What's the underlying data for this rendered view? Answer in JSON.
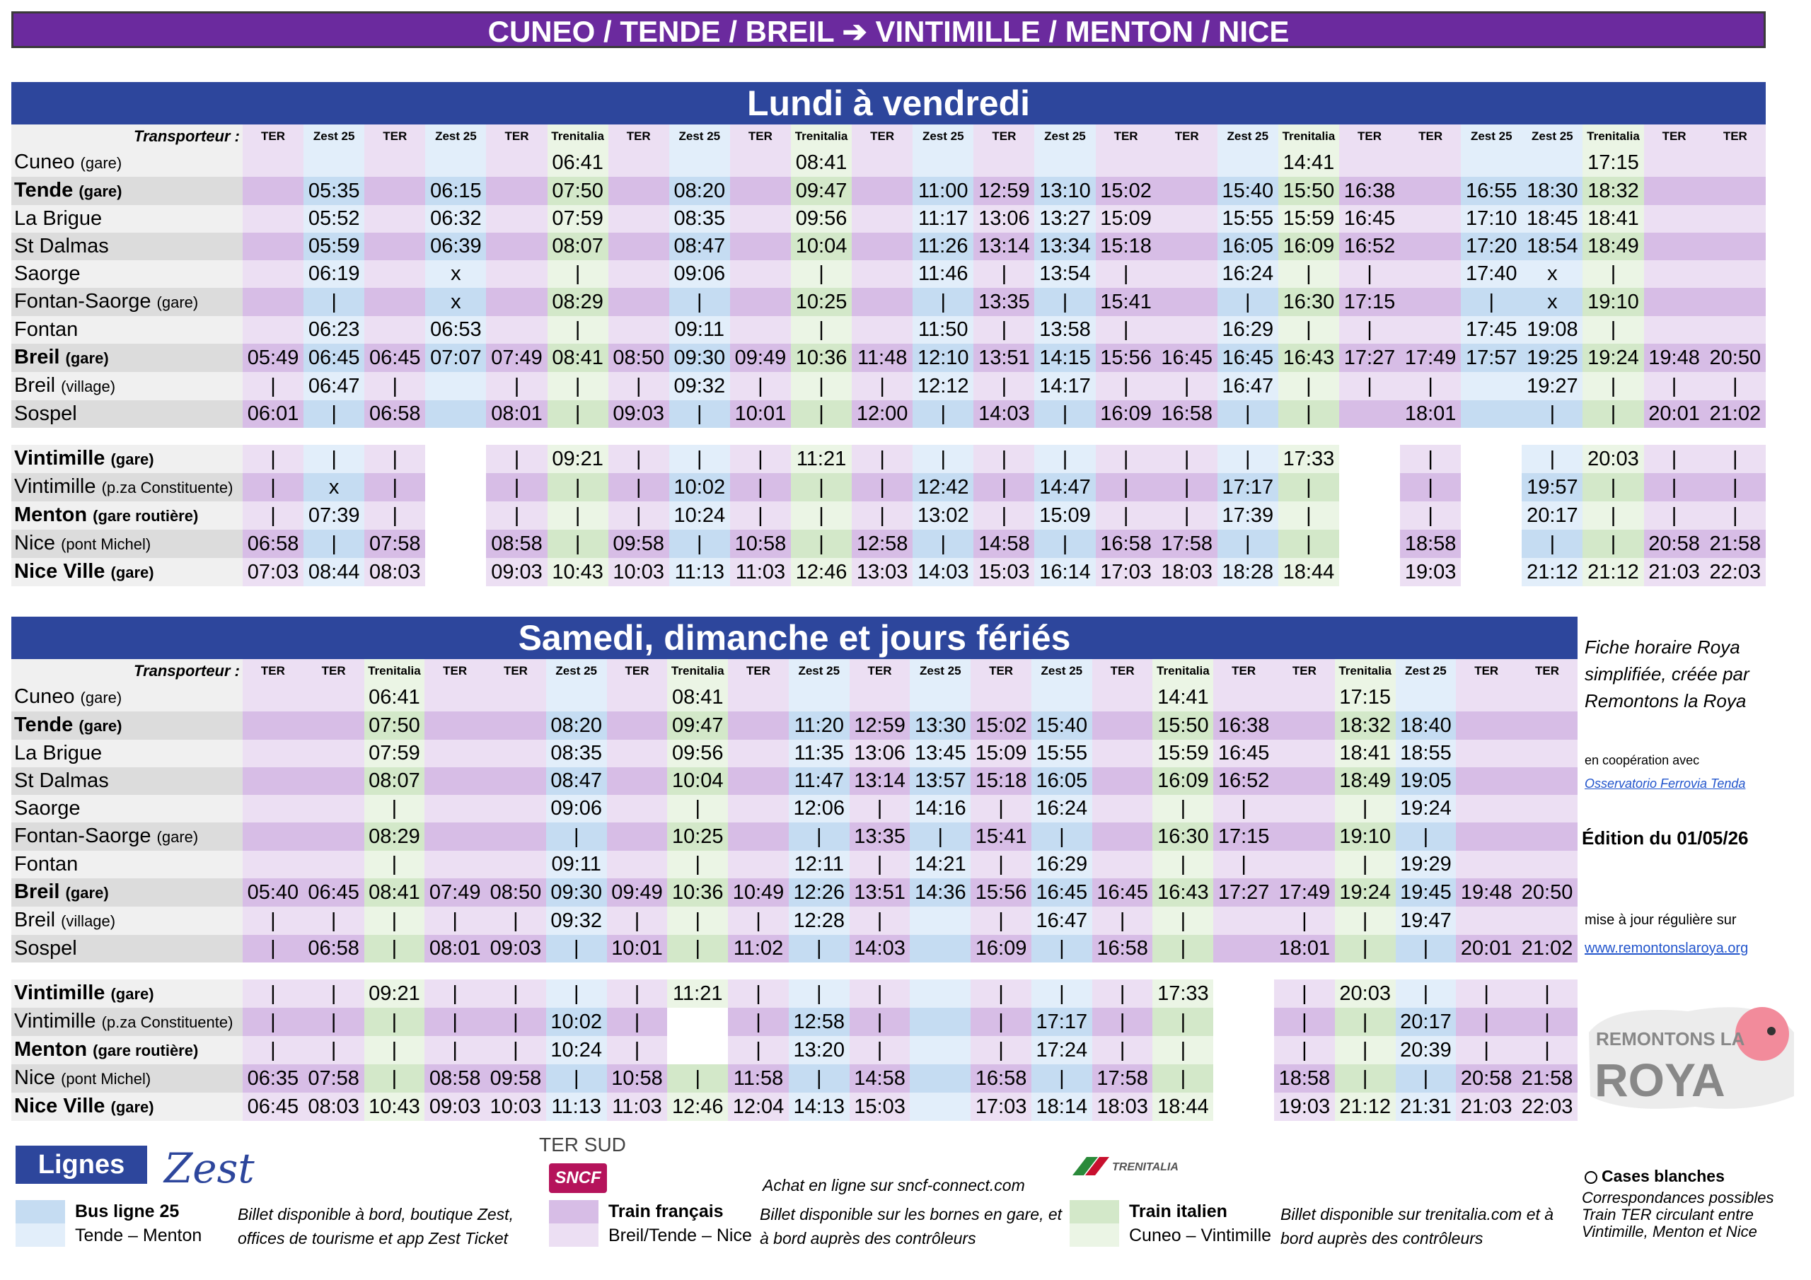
{
  "header": {
    "title": "CUNEO / TENDE / BREIL ➔ VINTIMILLE / MENTON / NICE"
  },
  "weekday": {
    "title": "Lundi à vendredi",
    "label": "Transporteur :",
    "carriers": [
      "TER",
      "Zest 25",
      "TER",
      "Zest 25",
      "TER",
      "Trenitalia",
      "TER",
      "Zest 25",
      "TER",
      "Trenitalia",
      "TER",
      "Zest 25",
      "TER",
      "Zest 25",
      "TER",
      "TER",
      "Zest 25",
      "Trenitalia",
      "TER",
      "TER",
      "Zest 25",
      "Zest 25",
      "Trenitalia",
      "TER",
      "TER"
    ],
    "rows": [
      {
        "name": "Cuneo",
        "suffix": "(gare)",
        "bold": false,
        "times": [
          "",
          "",
          "",
          "",
          "",
          "06:41",
          "",
          "",
          "",
          "08:41",
          "",
          "",
          "",
          "",
          "",
          "",
          "",
          "14:41",
          "",
          "",
          "",
          "",
          "17:15",
          "",
          ""
        ]
      },
      {
        "name": "Tende",
        "suffix": "(gare)",
        "bold": true,
        "times": [
          "",
          "05:35",
          "",
          "06:15",
          "",
          "07:50",
          "",
          "08:20",
          "",
          "09:47",
          "",
          "11:00",
          "12:59",
          "13:10",
          "15:02",
          "",
          "15:40",
          "15:50",
          "16:38",
          "",
          "16:55",
          "18:30",
          "18:32",
          "",
          ""
        ]
      },
      {
        "name": "La Brigue",
        "suffix": "",
        "bold": false,
        "times": [
          "",
          "05:52",
          "",
          "06:32",
          "",
          "07:59",
          "",
          "08:35",
          "",
          "09:56",
          "",
          "11:17",
          "13:06",
          "13:27",
          "15:09",
          "",
          "15:55",
          "15:59",
          "16:45",
          "",
          "17:10",
          "18:45",
          "18:41",
          "",
          ""
        ]
      },
      {
        "name": "St Dalmas",
        "suffix": "",
        "bold": false,
        "times": [
          "",
          "05:59",
          "",
          "06:39",
          "",
          "08:07",
          "",
          "08:47",
          "",
          "10:04",
          "",
          "11:26",
          "13:14",
          "13:34",
          "15:18",
          "",
          "16:05",
          "16:09",
          "16:52",
          "",
          "17:20",
          "18:54",
          "18:49",
          "",
          ""
        ]
      },
      {
        "name": "Saorge",
        "suffix": "",
        "bold": false,
        "times": [
          "",
          "06:19",
          "",
          "x",
          "",
          "|",
          "",
          "09:06",
          "",
          "|",
          "",
          "11:46",
          "|",
          "13:54",
          "|",
          "",
          "16:24",
          "|",
          "|",
          "",
          "17:40",
          "x",
          "|",
          "",
          ""
        ]
      },
      {
        "name": "Fontan-Saorge",
        "suffix": "(gare)",
        "bold": false,
        "times": [
          "",
          "|",
          "",
          "x",
          "",
          "08:29",
          "",
          "|",
          "",
          "10:25",
          "",
          "|",
          "13:35",
          "|",
          "15:41",
          "",
          "|",
          "16:30",
          "17:15",
          "",
          "|",
          "x",
          "19:10",
          "",
          ""
        ]
      },
      {
        "name": "Fontan",
        "suffix": "",
        "bold": false,
        "times": [
          "",
          "06:23",
          "",
          "06:53",
          "",
          "|",
          "",
          "09:11",
          "",
          "|",
          "",
          "11:50",
          "|",
          "13:58",
          "|",
          "",
          "16:29",
          "|",
          "|",
          "",
          "17:45",
          "19:08",
          "|",
          "",
          ""
        ]
      },
      {
        "name": "Breil",
        "suffix": "(gare)",
        "bold": true,
        "times": [
          "05:49",
          "06:45",
          "06:45",
          "07:07",
          "07:49",
          "08:41",
          "08:50",
          "09:30",
          "09:49",
          "10:36",
          "11:48",
          "12:10",
          "13:51",
          "14:15",
          "15:56",
          "16:45",
          "16:45",
          "16:43",
          "17:27",
          "17:49",
          "17:57",
          "19:25",
          "19:24",
          "19:48",
          "20:50"
        ]
      },
      {
        "name": "Breil",
        "suffix": "(village)",
        "bold": false,
        "times": [
          "|",
          "06:47",
          "|",
          "",
          "|",
          "|",
          "|",
          "09:32",
          "|",
          "|",
          "|",
          "12:12",
          "|",
          "14:17",
          "|",
          "|",
          "16:47",
          "|",
          "|",
          "|",
          "",
          "19:27",
          "|",
          "|",
          "|"
        ]
      },
      {
        "name": "Sospel",
        "suffix": "",
        "bold": false,
        "times": [
          "06:01",
          "|",
          "06:58",
          "",
          "08:01",
          "|",
          "09:03",
          "|",
          "10:01",
          "|",
          "12:00",
          "|",
          "14:03",
          "|",
          "16:09",
          "16:58",
          "|",
          "|",
          "",
          "18:01",
          "",
          "|",
          "|",
          "20:01",
          "21:02"
        ]
      },
      {
        "gap": true
      },
      {
        "name": "Vintimille",
        "suffix": "(gare)",
        "bold": true,
        "times": [
          "|",
          "|",
          "|",
          "",
          "|",
          "09:21",
          "|",
          "|",
          "|",
          "11:21",
          "|",
          "|",
          "|",
          "|",
          "|",
          "|",
          "|",
          "17:33",
          "",
          "|",
          "",
          "|",
          "20:03",
          "|",
          "|"
        ]
      },
      {
        "name": "Vintimille",
        "suffix": "(p.za Constituente)",
        "bold": false,
        "times": [
          "|",
          "x",
          "|",
          "",
          "|",
          "|",
          "|",
          "10:02",
          "|",
          "|",
          "|",
          "12:42",
          "|",
          "14:47",
          "|",
          "|",
          "17:17",
          "|",
          "",
          "|",
          "",
          "19:57",
          "|",
          "|",
          "|"
        ]
      },
      {
        "name": "Menton",
        "suffix": "(gare routière)",
        "bold": true,
        "times": [
          "|",
          "07:39",
          "|",
          "",
          "|",
          "|",
          "|",
          "10:24",
          "|",
          "|",
          "|",
          "13:02",
          "|",
          "15:09",
          "|",
          "|",
          "17:39",
          "|",
          "",
          "|",
          "",
          "20:17",
          "|",
          "|",
          "|"
        ]
      },
      {
        "name": "Nice",
        "suffix": "(pont Michel)",
        "bold": false,
        "times": [
          "06:58",
          "|",
          "07:58",
          "",
          "08:58",
          "|",
          "09:58",
          "|",
          "10:58",
          "|",
          "12:58",
          "|",
          "14:58",
          "|",
          "16:58",
          "17:58",
          "|",
          "|",
          "",
          "18:58",
          "",
          "|",
          "|",
          "20:58",
          "21:58"
        ]
      },
      {
        "name": "Nice Ville",
        "suffix": "(gare)",
        "bold": true,
        "times": [
          "07:03",
          "08:44",
          "08:03",
          "",
          "09:03",
          "10:43",
          "10:03",
          "11:13",
          "11:03",
          "12:46",
          "13:03",
          "14:03",
          "15:03",
          "16:14",
          "17:03",
          "18:03",
          "18:28",
          "18:44",
          "",
          "19:03",
          "",
          "21:12",
          "21:12",
          "21:03",
          "22:03"
        ]
      }
    ]
  },
  "weekend": {
    "title": "Samedi, dimanche et jours fériés",
    "label": "Transporteur :",
    "carriers": [
      "TER",
      "TER",
      "Trenitalia",
      "TER",
      "TER",
      "Zest 25",
      "TER",
      "Trenitalia",
      "TER",
      "Zest 25",
      "TER",
      "Zest 25",
      "TER",
      "Zest 25",
      "TER",
      "Trenitalia",
      "TER",
      "TER",
      "Trenitalia",
      "Zest 25",
      "TER",
      "TER"
    ],
    "rows": [
      {
        "name": "Cuneo",
        "suffix": "(gare)",
        "bold": false,
        "times": [
          "",
          "",
          "06:41",
          "",
          "",
          "",
          "",
          "08:41",
          "",
          "",
          "",
          "",
          "",
          "",
          "",
          "14:41",
          "",
          "",
          "17:15",
          "",
          "",
          ""
        ]
      },
      {
        "name": "Tende",
        "suffix": "(gare)",
        "bold": true,
        "times": [
          "",
          "",
          "07:50",
          "",
          "",
          "08:20",
          "",
          "09:47",
          "",
          "11:20",
          "12:59",
          "13:30",
          "15:02",
          "15:40",
          "",
          "15:50",
          "16:38",
          "",
          "18:32",
          "18:40",
          "",
          ""
        ]
      },
      {
        "name": "La Brigue",
        "suffix": "",
        "bold": false,
        "times": [
          "",
          "",
          "07:59",
          "",
          "",
          "08:35",
          "",
          "09:56",
          "",
          "11:35",
          "13:06",
          "13:45",
          "15:09",
          "15:55",
          "",
          "15:59",
          "16:45",
          "",
          "18:41",
          "18:55",
          "",
          ""
        ]
      },
      {
        "name": "St Dalmas",
        "suffix": "",
        "bold": false,
        "times": [
          "",
          "",
          "08:07",
          "",
          "",
          "08:47",
          "",
          "10:04",
          "",
          "11:47",
          "13:14",
          "13:57",
          "15:18",
          "16:05",
          "",
          "16:09",
          "16:52",
          "",
          "18:49",
          "19:05",
          "",
          ""
        ]
      },
      {
        "name": "Saorge",
        "suffix": "",
        "bold": false,
        "times": [
          "",
          "",
          "|",
          "",
          "",
          "09:06",
          "",
          "|",
          "",
          "12:06",
          "|",
          "14:16",
          "|",
          "16:24",
          "",
          "|",
          "|",
          "",
          "|",
          "19:24",
          "",
          ""
        ]
      },
      {
        "name": "Fontan-Saorge",
        "suffix": "(gare)",
        "bold": false,
        "times": [
          "",
          "",
          "08:29",
          "",
          "",
          "|",
          "",
          "10:25",
          "",
          "|",
          "13:35",
          "|",
          "15:41",
          "|",
          "",
          "16:30",
          "17:15",
          "",
          "19:10",
          "|",
          "",
          ""
        ]
      },
      {
        "name": "Fontan",
        "suffix": "",
        "bold": false,
        "times": [
          "",
          "",
          "|",
          "",
          "",
          "09:11",
          "",
          "|",
          "",
          "12:11",
          "|",
          "14:21",
          "|",
          "16:29",
          "",
          "|",
          "|",
          "",
          "|",
          "19:29",
          "",
          ""
        ]
      },
      {
        "name": "Breil",
        "suffix": "(gare)",
        "bold": true,
        "times": [
          "05:40",
          "06:45",
          "08:41",
          "07:49",
          "08:50",
          "09:30",
          "09:49",
          "10:36",
          "10:49",
          "12:26",
          "13:51",
          "14:36",
          "15:56",
          "16:45",
          "16:45",
          "16:43",
          "17:27",
          "17:49",
          "19:24",
          "19:45",
          "19:48",
          "20:50"
        ]
      },
      {
        "name": "Breil",
        "suffix": "(village)",
        "bold": false,
        "times": [
          "|",
          "|",
          "|",
          "|",
          "|",
          "09:32",
          "|",
          "|",
          "|",
          "12:28",
          "|",
          "",
          "|",
          "16:47",
          "|",
          "|",
          "",
          "|",
          "|",
          "19:47",
          "",
          ""
        ]
      },
      {
        "name": "Sospel",
        "suffix": "",
        "bold": false,
        "times": [
          "|",
          "06:58",
          "|",
          "08:01",
          "09:03",
          "|",
          "10:01",
          "|",
          "11:02",
          "|",
          "14:03",
          "",
          "16:09",
          "|",
          "16:58",
          "|",
          "",
          "18:01",
          "|",
          "|",
          "20:01",
          "21:02"
        ]
      },
      {
        "gap": true
      },
      {
        "name": "Vintimille",
        "suffix": "(gare)",
        "bold": true,
        "times": [
          "|",
          "|",
          "09:21",
          "|",
          "|",
          "|",
          "|",
          "11:21",
          "|",
          "|",
          "|",
          "",
          "|",
          "|",
          "|",
          "17:33",
          "",
          "|",
          "20:03",
          "|",
          "|",
          "|"
        ]
      },
      {
        "name": "Vintimille",
        "suffix": "(p.za Constituente)",
        "bold": false,
        "times": [
          "|",
          "|",
          "|",
          "|",
          "|",
          "10:02",
          "|",
          "",
          "|",
          "12:58",
          "|",
          "",
          "|",
          "17:17",
          "|",
          "|",
          "",
          "|",
          "|",
          "20:17",
          "|",
          "|"
        ]
      },
      {
        "name": "Menton",
        "suffix": "(gare routière)",
        "bold": true,
        "times": [
          "|",
          "|",
          "|",
          "|",
          "|",
          "10:24",
          "|",
          "",
          "|",
          "13:20",
          "|",
          "",
          "|",
          "17:24",
          "|",
          "|",
          "",
          "|",
          "|",
          "20:39",
          "|",
          "|"
        ]
      },
      {
        "name": "Nice",
        "suffix": "(pont Michel)",
        "bold": false,
        "times": [
          "06:35",
          "07:58",
          "|",
          "08:58",
          "09:58",
          "|",
          "10:58",
          "|",
          "11:58",
          "|",
          "14:58",
          "",
          "16:58",
          "|",
          "17:58",
          "|",
          "",
          "18:58",
          "|",
          "|",
          "20:58",
          "21:58"
        ]
      },
      {
        "name": "Nice Ville",
        "suffix": "(gare)",
        "bold": true,
        "times": [
          "06:45",
          "08:03",
          "10:43",
          "09:03",
          "10:03",
          "11:13",
          "11:03",
          "12:46",
          "12:04",
          "14:13",
          "15:03",
          "",
          "17:03",
          "18:14",
          "18:03",
          "18:44",
          "",
          "19:03",
          "21:12",
          "21:31",
          "21:03",
          "22:03"
        ]
      }
    ]
  },
  "side": {
    "fiche": "Fiche horaire Roya simplifiée, créée par Remontons la Roya",
    "coop": "en coopération avec",
    "observatorio": "Osservatorio Ferrovia Tenda",
    "edition": "Édition du 01/05/26",
    "maj": "mise à jour régulière sur",
    "site": "www.remontonslaroya.org",
    "logo_text_1": "REMONTONS LA",
    "logo_text_2": "ROYA"
  },
  "legend": {
    "lignes": "Lignes",
    "zest_logo": "Zest",
    "ter_sud": "TER SUD",
    "sncf": "SNCF",
    "achat": "Achat en ligne sur sncf-connect.com",
    "trenitalia_logo": "TRENITALIA",
    "bus_title": "Bus ligne 25",
    "bus_sub": "Tende – Menton",
    "bus_info": "Billet disponible à bord, boutique Zest, offices de tourisme et app Zest Ticket",
    "fr_title": "Train français",
    "fr_sub": "Breil/Tende – Nice",
    "fr_info": "Billet disponible sur les bornes en gare, et à bord auprès des contrôleurs",
    "it_title": "Train italien",
    "it_sub": "Cuneo – Vintimille",
    "it_info": "Billet disponible sur trenitalia.com et à bord auprès des contrôleurs",
    "white_title": "Cases blanches",
    "white_info": "Correspondances possibles Train TER circulant entre Vintimille, Menton et Nice"
  },
  "colors": {
    "title_bg": "#6b2a9e",
    "section_bg": "#2d469c",
    "ter": "#d7bde6",
    "zest": "#c5dcf2",
    "trenitalia": "#d3e8c9"
  }
}
